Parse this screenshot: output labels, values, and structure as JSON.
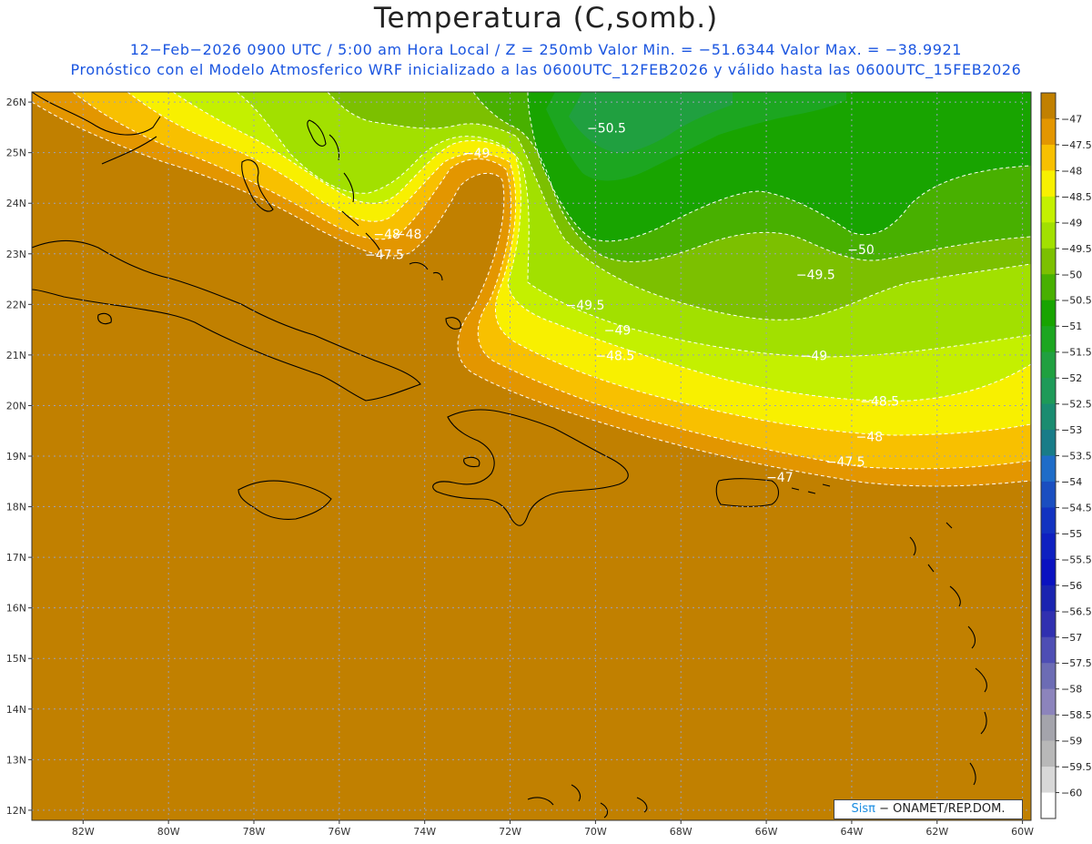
{
  "title": "Temperatura (C,somb.)",
  "subtitle_line1": "12−Feb−2026  0900 UTC / 5:00 am Hora Local / Z = 250mb  Valor Min. = −51.6344  Valor Max. = −38.9921",
  "subtitle_line2": "Pronóstico con el Modelo Atmosferico WRF inicializado a las 0600UTC_12FEB2026 y válido hasta las  0600UTC_15FEB2026",
  "credit": {
    "brand": "Sisπ",
    "org": " − ONAMET/REP.DOM."
  },
  "map": {
    "lon_range": [
      -83.2,
      -59.8
    ],
    "lat_range": [
      11.8,
      26.2
    ],
    "x_tick_labels": [
      "82W",
      "80W",
      "78W",
      "76W",
      "74W",
      "72W",
      "70W",
      "68W",
      "66W",
      "64W",
      "62W",
      "60W"
    ],
    "x_tick_values": [
      -82,
      -80,
      -78,
      -76,
      -74,
      -72,
      -70,
      -68,
      -66,
      -64,
      -62,
      -60
    ],
    "y_tick_labels": [
      "12N",
      "13N",
      "14N",
      "15N",
      "16N",
      "17N",
      "18N",
      "19N",
      "20N",
      "21N",
      "22N",
      "23N",
      "24N",
      "25N",
      "26N"
    ],
    "y_tick_values": [
      12,
      13,
      14,
      15,
      16,
      17,
      18,
      19,
      20,
      21,
      22,
      23,
      24,
      25,
      26
    ],
    "contour_labels": [
      {
        "text": "−50.5",
        "lon": -70.2,
        "lat": 25.4
      },
      {
        "text": "−49",
        "lon": -73.1,
        "lat": 24.9
      },
      {
        "text": "−48",
        "lon": -74.7,
        "lat": 23.3
      },
      {
        "text": "−48",
        "lon": -75.2,
        "lat": 23.3
      },
      {
        "text": "−47.5",
        "lon": -75.4,
        "lat": 22.9
      },
      {
        "text": "−50",
        "lon": -64.1,
        "lat": 23.0
      },
      {
        "text": "−49.5",
        "lon": -65.3,
        "lat": 22.5
      },
      {
        "text": "−49.5",
        "lon": -70.7,
        "lat": 21.9
      },
      {
        "text": "−49",
        "lon": -69.8,
        "lat": 21.4
      },
      {
        "text": "−49",
        "lon": -65.2,
        "lat": 20.9
      },
      {
        "text": "−48.5",
        "lon": -70.0,
        "lat": 20.9
      },
      {
        "text": "−48.5",
        "lon": -63.8,
        "lat": 20.0
      },
      {
        "text": "−48",
        "lon": -63.9,
        "lat": 19.3
      },
      {
        "text": "−47.5",
        "lon": -64.6,
        "lat": 18.8
      },
      {
        "text": "−47",
        "lon": -66.0,
        "lat": 18.5
      }
    ]
  },
  "legend": {
    "levels": [
      "−47",
      "−47.5",
      "−48",
      "−48.5",
      "−49",
      "−49.5",
      "−50",
      "−50.5",
      "−51",
      "−51.5",
      "−52",
      "−52.5",
      "−53",
      "−53.5",
      "−54",
      "−54.5",
      "−55",
      "−55.5",
      "−56",
      "−56.5",
      "−57",
      "−57.5",
      "−58",
      "−58.5",
      "−59",
      "−59.5",
      "−60"
    ],
    "colors": [
      "#c18000",
      "#e39600",
      "#f8c000",
      "#f8f000",
      "#c4f000",
      "#a2e000",
      "#7cc000",
      "#48b000",
      "#18a400",
      "#1ca620",
      "#20a040",
      "#1e9a58",
      "#1a8c70",
      "#187c88",
      "#1e6cc8",
      "#1a4ec0",
      "#1232c0",
      "#0e20c0",
      "#0a12c0",
      "#1a24b0",
      "#3030b0",
      "#4e4eb4",
      "#6c6cb4",
      "#8c84bc",
      "#a4a4ac",
      "#b8b8b8",
      "#d8d8d8",
      "#ffffff"
    ]
  },
  "colors": {
    "warm_background": "#c18000",
    "contour_line": "#ffffff",
    "grid_line": "#9aa0b8",
    "coast": "#000000"
  }
}
